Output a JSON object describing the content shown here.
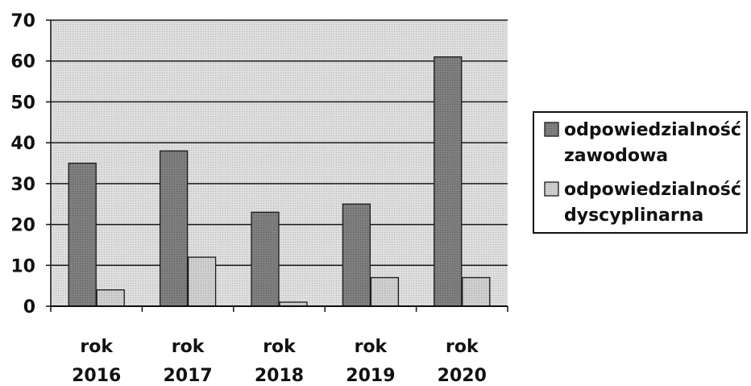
{
  "chart_data": {
    "type": "bar",
    "categories": [
      [
        "rok",
        "2016"
      ],
      [
        "rok",
        "2017"
      ],
      [
        "rok",
        "2018"
      ],
      [
        "rok",
        "2019"
      ],
      [
        "rok",
        "2020"
      ]
    ],
    "series": [
      {
        "name": [
          "odpowiedzialność",
          "zawodowa"
        ],
        "values": [
          35,
          38,
          23,
          25,
          61
        ],
        "color": "#7a7a7a"
      },
      {
        "name": [
          "odpowiedzialność",
          "dyscyplinarna"
        ],
        "values": [
          4,
          12,
          1,
          7,
          7
        ],
        "color": "#c4c4c4"
      }
    ],
    "ylim": [
      0,
      70
    ],
    "yticks": [
      0,
      10,
      20,
      30,
      40,
      50,
      60,
      70
    ],
    "grid": true,
    "legend": "right",
    "plot_background": "#d6d6d6"
  }
}
